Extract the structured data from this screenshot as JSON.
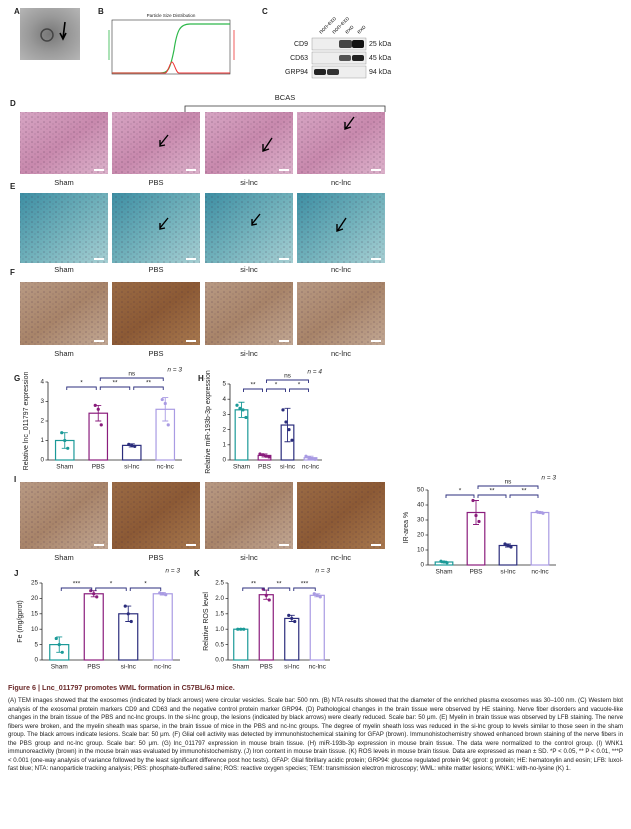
{
  "panel_labels": [
    "A",
    "B",
    "C",
    "D",
    "E",
    "F",
    "G",
    "H",
    "I",
    "J",
    "K"
  ],
  "nta": {
    "title": "Particle Size Distribution"
  },
  "blot": {
    "lanes": [
      "non-exo",
      "non-exo",
      "exo",
      "exo"
    ],
    "rows": [
      {
        "protein": "CD9",
        "size": "25 kDa"
      },
      {
        "protein": "CD63",
        "size": "45 kDa"
      },
      {
        "protein": "GRP94",
        "size": "94 kDa"
      }
    ]
  },
  "bcas": "BCAS",
  "group_labels": [
    "Sham",
    "PBS",
    "si-lnc",
    "nc-lnc"
  ],
  "charts": [
    {
      "type": "bar",
      "n_label": "n = 3",
      "y_label": "Relative lnc_011797 expression",
      "categories": [
        "Sham",
        "PBS",
        "si-lnc",
        "nc-lnc"
      ],
      "colors": [
        "#1b9a98",
        "#8a1c7c",
        "#2b2d7c",
        "#a99be3"
      ],
      "values": [
        1.0,
        2.4,
        0.75,
        2.6
      ],
      "errors": [
        0.4,
        0.4,
        0.08,
        0.6
      ],
      "points": [
        [
          1.4,
          1.0,
          0.6
        ],
        [
          2.8,
          2.6,
          1.8
        ],
        [
          0.8,
          0.75,
          0.7
        ],
        [
          3.1,
          2.9,
          1.8
        ]
      ],
      "ylim": [
        0,
        4
      ],
      "yticks": [
        0,
        1,
        2,
        3,
        4
      ],
      "significance": [
        {
          "label": "*",
          "from": 0,
          "to": 1
        },
        {
          "label": "**",
          "from": 1,
          "to": 2
        },
        {
          "label": "**",
          "from": 2,
          "to": 3
        },
        {
          "label": "ns",
          "from": 1,
          "to": 3
        }
      ]
    },
    {
      "type": "bar",
      "n_label": "n = 4",
      "y_label": "Relative miR-193b-3p expression",
      "categories": [
        "Sham",
        "PBS",
        "si-lnc",
        "nc-lnc"
      ],
      "colors": [
        "#1b9a98",
        "#8a1c7c",
        "#2b2d7c",
        "#a99be3"
      ],
      "values": [
        3.3,
        0.3,
        2.3,
        0.15
      ],
      "errors": [
        0.5,
        0.1,
        1.1,
        0.1
      ],
      "points": [
        [
          3.6,
          3.4,
          3.3,
          2.8
        ],
        [
          0.4,
          0.35,
          0.25,
          0.2
        ],
        [
          3.3,
          2.5,
          2.0,
          1.3
        ],
        [
          0.25,
          0.15,
          0.1,
          0.05
        ]
      ],
      "ylim": [
        0,
        5
      ],
      "yticks": [
        0,
        1,
        2,
        3,
        4,
        5
      ],
      "significance": [
        {
          "label": "**",
          "from": 0,
          "to": 1
        },
        {
          "label": "*",
          "from": 1,
          "to": 2
        },
        {
          "label": "*",
          "from": 2,
          "to": 3
        },
        {
          "label": "ns",
          "from": 1,
          "to": 3
        }
      ]
    },
    {
      "type": "bar",
      "n_label": "n = 3",
      "y_label": "IR-area %",
      "categories": [
        "Sham",
        "PBS",
        "si-lnc",
        "nc-lnc"
      ],
      "colors": [
        "#1b9a98",
        "#8a1c7c",
        "#2b2d7c",
        "#a99be3"
      ],
      "values": [
        2,
        35,
        13,
        35
      ],
      "errors": [
        0.5,
        8,
        1,
        0.5
      ],
      "points": [
        [
          2.5,
          2,
          1.5
        ],
        [
          43,
          33,
          29
        ],
        [
          14,
          13,
          12
        ],
        [
          35.5,
          35,
          34.5
        ]
      ],
      "ylim": [
        0,
        50
      ],
      "yticks": [
        0,
        10,
        20,
        30,
        40,
        50
      ],
      "significance": [
        {
          "label": "*",
          "from": 0,
          "to": 1
        },
        {
          "label": "**",
          "from": 1,
          "to": 2
        },
        {
          "label": "**",
          "from": 2,
          "to": 3
        },
        {
          "label": "ns",
          "from": 1,
          "to": 3
        }
      ]
    },
    {
      "type": "bar",
      "n_label": "n = 3",
      "y_label": "Fe (mg/gprot)",
      "categories": [
        "Sham",
        "PBS",
        "si-lnc",
        "nc-lnc"
      ],
      "colors": [
        "#1b9a98",
        "#8a1c7c",
        "#2b2d7c",
        "#a99be3"
      ],
      "values": [
        5,
        21.5,
        15,
        21.5
      ],
      "errors": [
        2.5,
        1,
        2.5,
        0.4
      ],
      "points": [
        [
          7,
          5,
          2.5
        ],
        [
          22.5,
          21.5,
          20.5
        ],
        [
          17.5,
          15,
          12.5
        ],
        [
          21.8,
          21.5,
          21.2
        ]
      ],
      "ylim": [
        0,
        25
      ],
      "yticks": [
        0,
        5,
        10,
        15,
        20,
        25
      ],
      "significance": [
        {
          "label": "***",
          "from": 0,
          "to": 1
        },
        {
          "label": "*",
          "from": 1,
          "to": 2
        },
        {
          "label": "*",
          "from": 2,
          "to": 3
        }
      ]
    },
    {
      "type": "bar",
      "n_label": "n = 3",
      "y_label": "Relative ROS level",
      "categories": [
        "Sham",
        "PBS",
        "si-lnc",
        "nc-lnc"
      ],
      "colors": [
        "#1b9a98",
        "#8a1c7c",
        "#2b2d7c",
        "#a99be3"
      ],
      "values": [
        1.0,
        2.12,
        1.35,
        2.1
      ],
      "errors": [
        0.02,
        0.15,
        0.1,
        0.05
      ],
      "points": [
        [
          1,
          1,
          1
        ],
        [
          2.3,
          2.1,
          1.95
        ],
        [
          1.45,
          1.35,
          1.25
        ],
        [
          2.15,
          2.1,
          2.05
        ]
      ],
      "ylim": [
        0,
        2.5
      ],
      "yticks": [
        {
          "value": 0,
          "label": "0.0"
        },
        {
          "value": 0.5,
          "label": "0.5"
        },
        {
          "value": 1,
          "label": "1.0"
        },
        {
          "value": 1.5,
          "label": "1.5"
        },
        {
          "value": 2,
          "label": "2.0"
        },
        {
          "value": 2.5,
          "label": "2.5"
        }
      ],
      "significance": [
        {
          "label": "**",
          "from": 0,
          "to": 1
        },
        {
          "label": "**",
          "from": 1,
          "to": 2
        },
        {
          "label": "***",
          "from": 2,
          "to": 3
        }
      ]
    }
  ],
  "caption": {
    "title": "Figure 6 | Lnc_011797 promotes WML formation in C57BL/6J mice.",
    "text": "(A) TEM images showed that the exosomes (indicated by black arrows) were circular vesicles. Scale bar: 500 nm. (B) NTA results showed that the diameter of the enriched plasma exosomes was 30–100 nm. (C) Western blot analysis of the exosomal protein markers CD9 and CD63 and the negative control protein marker GRP94. (D) Pathological changes in the brain tissue were observed by HE staining. Nerve fiber disorders and vacuole-like changes in the brain tissue of the PBS and nc-lnc groups. In the si-lnc group, the lesions (indicated by black arrows) were clearly reduced. Scale bar: 50 μm. (E) Myelin in brain tissue was observed by LFB staining. The nerve fibers were broken, and the myelin sheath was sparse, in the brain tissue of mice in the PBS and nc-lnc groups. The degree of myelin sheath loss was reduced in the si-lnc group to levels similar to those seen in the sham group. The black arrows indicate lesions. Scale bar: 50 μm. (F) Glial cell activity was detected by immunohistochemical staining for GFAP (brown). Immunohistochemistry showed enhanced brown staining of the nerve fibers in the PBS group and nc-lnc group. Scale bar: 50 μm. (G) lnc_011797 expression in mouse brain tissue. (H) miR-193b-3p expression in mouse brain tissue. The data were normalized to the control group. (I) WNK1 immunoreactivity (brown) in the mouse brain was evaluated by immunohistochemistry. (J) Iron content in mouse brain tissue. (K) ROS levels in mouse brain tissue. Data are expressed as mean ± SD. *P < 0.05, ** P < 0.01, ***P < 0.001 (one-way analysis of variance followed by the least significant difference post hoc tests). GFAP: Glial fibrillary acidic protein; GRP94: glucose regulated protein 94; gprot: g protein; HE: hematoxylin and eosin; LFB: luxol-fast blue; NTA: nanoparticle tracking analysis; PBS: phosphate-buffered saline; ROS: reactive oxygen species; TEM: transmission electron microscopy; WML: white matter lesions; WNK1: with-no-lysine (K) 1."
  }
}
